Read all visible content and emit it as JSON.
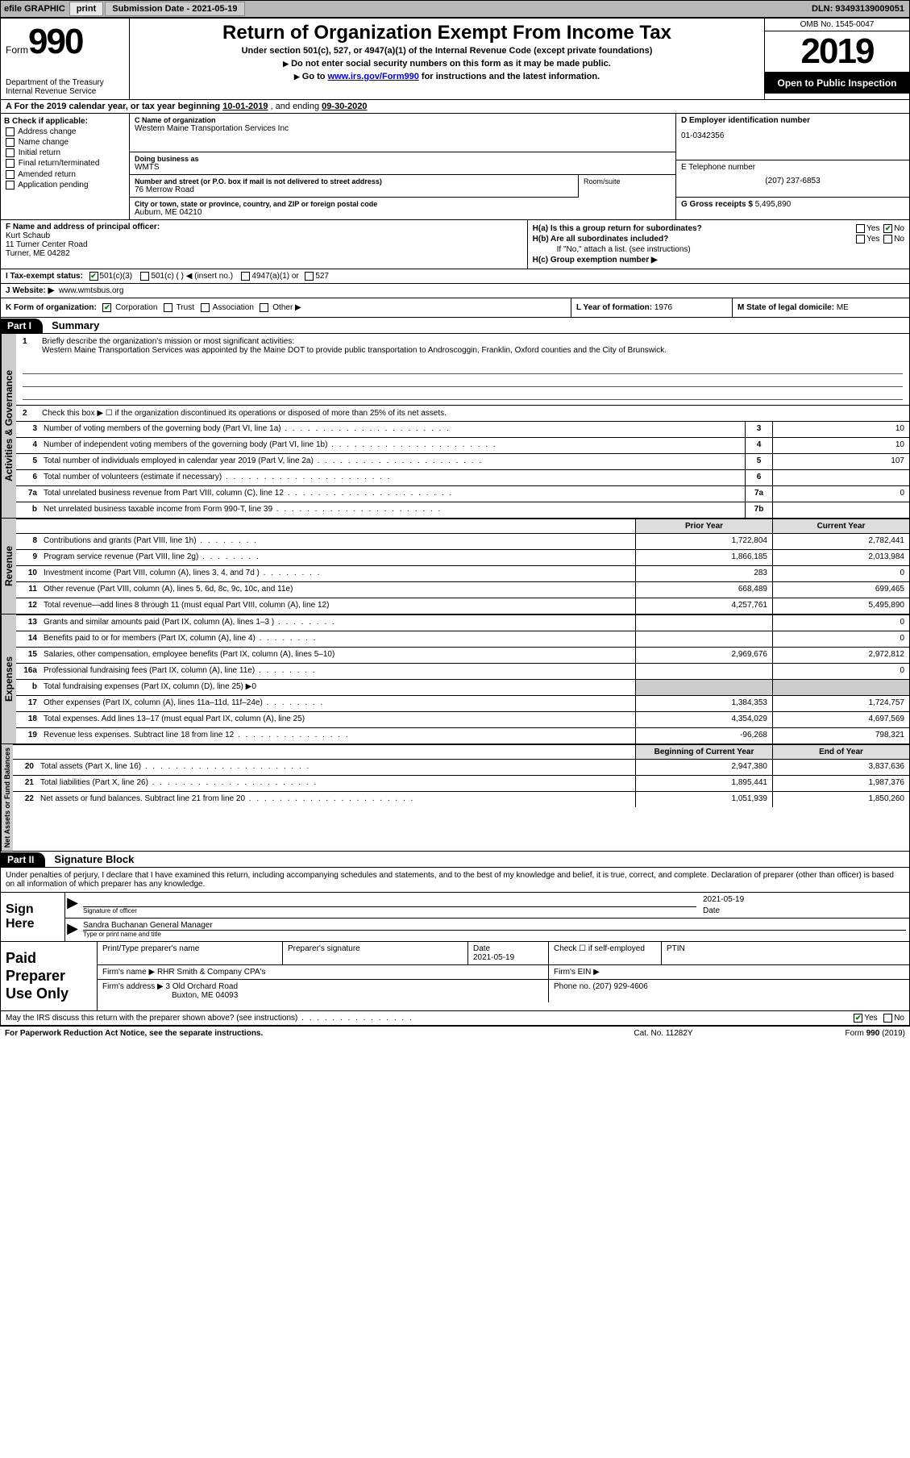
{
  "topbar": {
    "efile_label": "efile GRAPHIC",
    "print_btn": "print",
    "submission_label": "Submission Date - 2021-05-19",
    "dln": "DLN: 93493139009051"
  },
  "header": {
    "form_word": "Form",
    "form_num": "990",
    "dept": "Department of the Treasury\nInternal Revenue Service",
    "title": "Return of Organization Exempt From Income Tax",
    "subtitle": "Under section 501(c), 527, or 4947(a)(1) of the Internal Revenue Code (except private foundations)",
    "line1": "Do not enter social security numbers on this form as it may be made public.",
    "line2_pre": "Go to ",
    "line2_link": "www.irs.gov/Form990",
    "line2_post": " for instructions and the latest information.",
    "omb": "OMB No. 1545-0047",
    "year": "2019",
    "inspect": "Open to Public Inspection"
  },
  "period": {
    "label_a": "A For the 2019 calendar year, or tax year beginning ",
    "begin": "10-01-2019",
    "mid": " , and ending ",
    "end": "09-30-2020"
  },
  "b": {
    "heading": "B Check if applicable:",
    "opts": [
      "Address change",
      "Name change",
      "Initial return",
      "Final return/terminated",
      "Amended return",
      "Application pending"
    ]
  },
  "c": {
    "name_lbl": "C Name of organization",
    "name": "Western Maine Transportation Services Inc",
    "dba_lbl": "Doing business as",
    "dba": "WMTS",
    "addr_lbl": "Number and street (or P.O. box if mail is not delivered to street address)",
    "addr": "76 Merrow Road",
    "room_lbl": "Room/suite",
    "city_lbl": "City or town, state or province, country, and ZIP or foreign postal code",
    "city": "Auburn, ME  04210"
  },
  "d": {
    "lbl": "D Employer identification number",
    "val": "01-0342356"
  },
  "e": {
    "lbl": "E Telephone number",
    "val": "(207) 237-6853"
  },
  "g": {
    "lbl": "G Gross receipts $ ",
    "val": "5,495,890"
  },
  "f": {
    "lbl": "F  Name and address of principal officer:",
    "name": "Kurt Schaub",
    "addr1": "11 Turner Center Road",
    "addr2": "Turner, ME  04282"
  },
  "h": {
    "ha": "H(a)  Is this a group return for subordinates?",
    "hb": "H(b)  Are all subordinates included?",
    "hb_note": "If \"No,\" attach a list. (see instructions)",
    "hc": "H(c)  Group exemption number ▶",
    "yes": "Yes",
    "no": "No"
  },
  "i": {
    "lbl": "I  Tax-exempt status:",
    "o1": "501(c)(3)",
    "o2": "501(c) (   ) ◀ (insert no.)",
    "o3": "4947(a)(1) or",
    "o4": "527"
  },
  "j": {
    "lbl": "J  Website: ▶",
    "val": "www.wmtsbus.org"
  },
  "k": {
    "lbl": "K Form of organization:",
    "o1": "Corporation",
    "o2": "Trust",
    "o3": "Association",
    "o4": "Other ▶"
  },
  "l": {
    "lbl": "L Year of formation: ",
    "val": "1976"
  },
  "m": {
    "lbl": "M State of legal domicile: ",
    "val": "ME"
  },
  "part1": {
    "header": "Part I",
    "title": "Summary",
    "tab_ag": "Activities & Governance",
    "tab_rev": "Revenue",
    "tab_exp": "Expenses",
    "tab_na": "Net Assets or Fund Balances",
    "l1": "Briefly describe the organization's mission or most significant activities:",
    "mission": "Western Maine Transportation Services was appointed by the Maine DOT to provide public transportation to Androscoggin, Franklin, Oxford counties and the City of Brunswick.",
    "l2": "Check this box ▶ ☐  if the organization discontinued its operations or disposed of more than 25% of its net assets.",
    "lines_ag": [
      {
        "n": "3",
        "t": "Number of voting members of the governing body (Part VI, line 1a)",
        "box": "3",
        "v": "10"
      },
      {
        "n": "4",
        "t": "Number of independent voting members of the governing body (Part VI, line 1b)",
        "box": "4",
        "v": "10"
      },
      {
        "n": "5",
        "t": "Total number of individuals employed in calendar year 2019 (Part V, line 2a)",
        "box": "5",
        "v": "107"
      },
      {
        "n": "6",
        "t": "Total number of volunteers (estimate if necessary)",
        "box": "6",
        "v": ""
      },
      {
        "n": "7a",
        "t": "Total unrelated business revenue from Part VIII, column (C), line 12",
        "box": "7a",
        "v": "0"
      },
      {
        "n": "b",
        "t": "Net unrelated business taxable income from Form 990-T, line 39",
        "box": "7b",
        "v": ""
      }
    ],
    "prior_hdr": "Prior Year",
    "curr_hdr": "Current Year",
    "lines_rev": [
      {
        "n": "8",
        "t": "Contributions and grants (Part VIII, line 1h)",
        "dots": "s",
        "p": "1,722,804",
        "c": "2,782,441"
      },
      {
        "n": "9",
        "t": "Program service revenue (Part VIII, line 2g)",
        "dots": "s",
        "p": "1,866,185",
        "c": "2,013,984"
      },
      {
        "n": "10",
        "t": "Investment income (Part VIII, column (A), lines 3, 4, and 7d )",
        "dots": "s",
        "p": "283",
        "c": "0"
      },
      {
        "n": "11",
        "t": "Other revenue (Part VIII, column (A), lines 5, 6d, 8c, 9c, 10c, and 11e)",
        "dots": "",
        "p": "668,489",
        "c": "699,465"
      },
      {
        "n": "12",
        "t": "Total revenue—add lines 8 through 11 (must equal Part VIII, column (A), line 12)",
        "dots": "",
        "p": "4,257,761",
        "c": "5,495,890"
      }
    ],
    "lines_exp": [
      {
        "n": "13",
        "t": "Grants and similar amounts paid (Part IX, column (A), lines 1–3 )",
        "dots": "s",
        "p": "",
        "c": "0"
      },
      {
        "n": "14",
        "t": "Benefits paid to or for members (Part IX, column (A), line 4)",
        "dots": "s",
        "p": "",
        "c": "0"
      },
      {
        "n": "15",
        "t": "Salaries, other compensation, employee benefits (Part IX, column (A), lines 5–10)",
        "dots": "",
        "p": "2,969,676",
        "c": "2,972,812"
      },
      {
        "n": "16a",
        "t": "Professional fundraising fees (Part IX, column (A), line 11e)",
        "dots": "s",
        "p": "",
        "c": "0"
      },
      {
        "n": "b",
        "t": "Total fundraising expenses (Part IX, column (D), line 25) ▶0",
        "dots": "",
        "p": "GREY",
        "c": "GREY"
      },
      {
        "n": "17",
        "t": "Other expenses (Part IX, column (A), lines 11a–11d, 11f–24e)",
        "dots": "s",
        "p": "1,384,353",
        "c": "1,724,757"
      },
      {
        "n": "18",
        "t": "Total expenses. Add lines 13–17 (must equal Part IX, column (A), line 25)",
        "dots": "",
        "p": "4,354,029",
        "c": "4,697,569"
      },
      {
        "n": "19",
        "t": "Revenue less expenses. Subtract line 18 from line 12",
        "dots": "m",
        "p": "-96,268",
        "c": "798,321"
      }
    ],
    "boy_hdr": "Beginning of Current Year",
    "eoy_hdr": "End of Year",
    "lines_na": [
      {
        "n": "20",
        "t": "Total assets (Part X, line 16)",
        "p": "2,947,380",
        "c": "3,837,636"
      },
      {
        "n": "21",
        "t": "Total liabilities (Part X, line 26)",
        "p": "1,895,441",
        "c": "1,987,376"
      },
      {
        "n": "22",
        "t": "Net assets or fund balances. Subtract line 21 from line 20",
        "p": "1,051,939",
        "c": "1,850,260"
      }
    ]
  },
  "part2": {
    "header": "Part II",
    "title": "Signature Block",
    "penalty": "Under penalties of perjury, I declare that I have examined this return, including accompanying schedules and statements, and to the best of my knowledge and belief, it is true, correct, and complete. Declaration of preparer (other than officer) is based on all information of which preparer has any knowledge.",
    "sign_here": "Sign Here",
    "sig_officer": "Signature of officer",
    "sig_date": "2021-05-19",
    "date_lbl": "Date",
    "name_title": "Sandra Buchanan  General Manager",
    "name_title_lbl": "Type or print name and title",
    "paid": "Paid Preparer Use Only",
    "p_name_lbl": "Print/Type preparer's name",
    "p_sig_lbl": "Preparer's signature",
    "p_date_lbl": "Date",
    "p_date": "2021-05-19",
    "p_check": "Check ☐  if self-employed",
    "ptin": "PTIN",
    "firm_name_lbl": "Firm's name    ▶",
    "firm_name": "RHR Smith & Company CPA's",
    "firm_ein": "Firm's EIN ▶",
    "firm_addr_lbl": "Firm's address ▶",
    "firm_addr": "3 Old Orchard Road",
    "firm_city": "Buxton, ME  04093",
    "firm_phone": "Phone no. (207) 929-4606",
    "discuss": "May the IRS discuss this return with the preparer shown above? (see instructions)"
  },
  "footer": {
    "left": "For Paperwork Reduction Act Notice, see the separate instructions.",
    "mid": "Cat. No. 11282Y",
    "right": "Form 990 (2019)"
  }
}
